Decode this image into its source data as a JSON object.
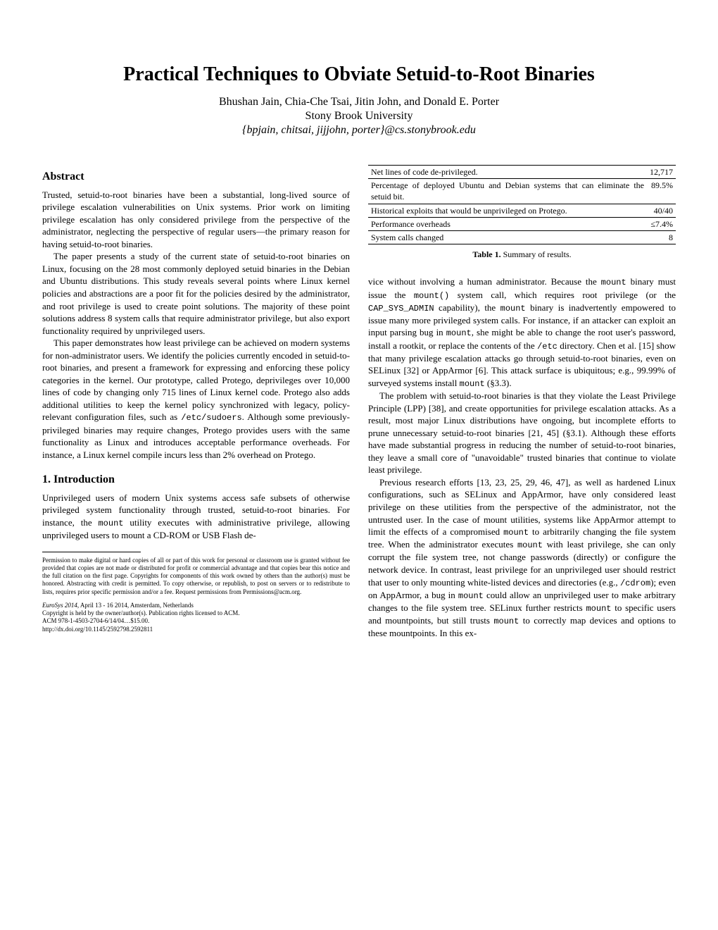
{
  "title": "Practical Techniques to Obviate Setuid-to-Root Binaries",
  "authors": "Bhushan Jain, Chia-Che Tsai, Jitin John, and Donald E. Porter",
  "affiliation": "Stony Brook University",
  "emails": "{bpjain, chitsai, jijjohn, porter}@cs.stonybrook.edu",
  "abstract_heading": "Abstract",
  "intro_heading": "1.    Introduction",
  "abstract_p1": "Trusted, setuid-to-root binaries have been a substantial, long-lived source of privilege escalation vulnerabilities on Unix systems. Prior work on limiting privilege escalation has only considered privilege from the perspective of the administrator, neglecting the perspective of regular users—the primary reason for having setuid-to-root binaries.",
  "abstract_p2": "The paper presents a study of the current state of setuid-to-root binaries on Linux, focusing on the 28 most commonly deployed setuid binaries in the Debian and Ubuntu distributions. This study reveals several points where Linux kernel policies and abstractions are a poor fit for the policies desired by the administrator, and root privilege is used to create point solutions. The majority of these point solutions address 8 system calls that require administrator privilege, but also export functionality required by unprivileged users.",
  "abstract_p3a": "This paper demonstrates how least privilege can be achieved on modern systems for non-administrator users. We identify the policies currently encoded in setuid-to-root binaries, and present a framework for expressing and enforcing these policy categories in the kernel. Our prototype, called Protego, deprivileges over 10,000 lines of code by changing only 715 lines of Linux kernel code. Protego also adds additional utilities to keep the kernel policy synchronized with legacy, policy-relevant configuration files, such as ",
  "abstract_p3_code": "/etc/sudoers",
  "abstract_p3b": ". Although some previously-privileged binaries may require changes, Protego provides users with the same functionality as Linux and introduces acceptable performance overheads. For instance, a Linux kernel compile incurs less than 2% overhead on Protego.",
  "intro_p1a": "Unprivileged users of modern Unix systems access safe subsets of otherwise privileged system functionality through trusted, setuid-to-root binaries. For instance, the ",
  "intro_p1_code": "mount",
  "intro_p1b": " utility executes with administrative privilege, allowing unprivileged users to mount a CD-ROM or USB Flash de-",
  "permission": "Permission to make digital or hard copies of all or part of this work for personal or classroom use is granted without fee provided that copies are not made or distributed for profit or commercial advantage and that copies bear this notice and the full citation on the first page. Copyrights for components of this work owned by others than the author(s) must be honored. Abstracting with credit is permitted. To copy otherwise, or republish, to post on servers or to redistribute to lists, requires prior specific permission and/or a fee. Request permissions from Permissions@acm.org.",
  "venue_line1_it": "EuroSys 2014",
  "venue_line1": ", April 13 - 16 2014, Amsterdam, Netherlands",
  "venue_line2": "Copyright is held by the owner/author(s). Publication rights licensed to ACM.",
  "venue_line3": "ACM 978-1-4503-2704-6/14/04…$15.00.",
  "venue_line4": "http://dx.doi.org/10.1145/2592798.2592811",
  "table": {
    "rows": [
      [
        "Net lines of code de-privileged.",
        "12,717"
      ],
      [
        "Percentage of deployed Ubuntu and Debian systems that can eliminate the setuid bit.",
        "89.5%"
      ],
      [
        "Historical exploits that would be unprivileged on Protego.",
        "40/40"
      ],
      [
        "Performance overheads",
        "≤7.4%"
      ],
      [
        "System calls changed",
        "8"
      ]
    ],
    "caption_bold": "Table 1.",
    "caption": " Summary of results."
  },
  "col2_p1a": "vice without involving a human administrator. Because the ",
  "col2_p1_c1": "mount",
  "col2_p1b": " binary must issue the ",
  "col2_p1_c2": "mount()",
  "col2_p1c": " system call, which requires root privilege (or the ",
  "col2_p1_c3": "CAP_SYS_ADMIN",
  "col2_p1d": " capability), the ",
  "col2_p1_c4": "mount",
  "col2_p1e": " binary is inadvertently empowered to issue many more privileged system calls. For instance, if an attacker can exploit an input parsing bug in ",
  "col2_p1_c5": "mount",
  "col2_p1f": ", she might be able to change the root user's password, install a rootkit, or replace the contents of the ",
  "col2_p1_c6": "/etc",
  "col2_p1g": " directory. Chen et al. [15] show that many privilege escalation attacks go through setuid-to-root binaries, even on SELinux [32] or AppArmor [6]. This attack surface is ubiquitous; e.g., 99.99% of surveyed systems install ",
  "col2_p1_c7": "mount",
  "col2_p1h": " (§3.3).",
  "col2_p2": "The problem with setuid-to-root binaries is that they violate the Least Privilege Principle (LPP) [38], and create opportunities for privilege escalation attacks. As a result, most major Linux distributions have ongoing, but incomplete efforts to prune unnecessary setuid-to-root binaries [21, 45] (§3.1). Although these efforts have made substantial progress in reducing the number of setuid-to-root binaries, they leave a small core of \"unavoidable\" trusted binaries that continue to violate least privilege.",
  "col2_p3a": "Previous research efforts [13, 23, 25, 29, 46, 47], as well as hardened Linux configurations, such as SELinux and AppArmor, have only considered least privilege on these utilities from the perspective of the administrator, not the untrusted user. In the case of mount utilities, systems like AppArmor attempt to limit the effects of a compromised ",
  "col2_p3_c1": "mount",
  "col2_p3b": " to arbitrarily changing the file system tree. When the administrator executes ",
  "col2_p3_c2": "mount",
  "col2_p3c": " with least privilege, she can only corrupt the file system tree, not change passwords (directly) or configure the network device. In contrast, least privilege for an unprivileged user should restrict that user to only mounting white-listed devices and directories (e.g., ",
  "col2_p3_c3": "/cdrom",
  "col2_p3d": "); even on AppArmor, a bug in ",
  "col2_p3_c4": "mount",
  "col2_p3e": " could allow an unprivileged user to make arbitrary changes to the file system tree. SELinux further restricts ",
  "col2_p3_c5": "mount",
  "col2_p3f": " to specific users and mountpoints, but still trusts ",
  "col2_p3_c6": "mount",
  "col2_p3g": " to correctly map devices and options to these mountpoints. In this ex-"
}
